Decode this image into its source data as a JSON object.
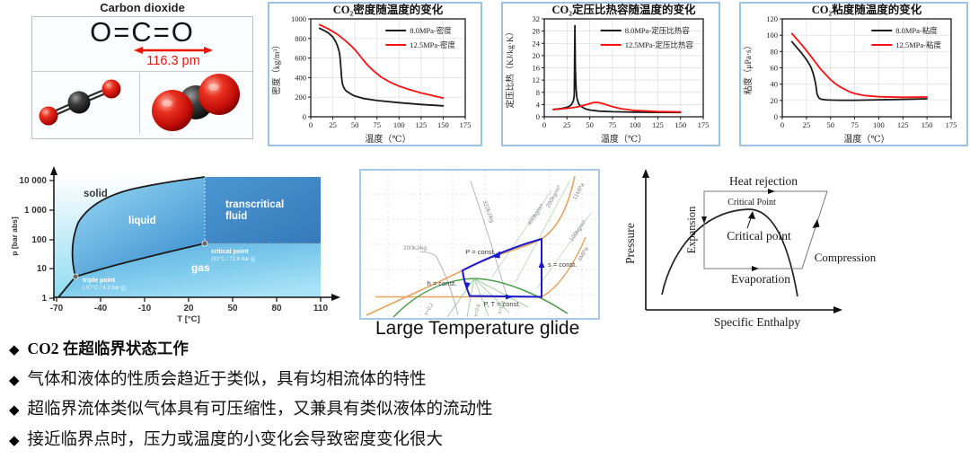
{
  "infobox": {
    "title": "Carbon dioxide",
    "formula": "O=C=O",
    "bond_length": "116.3 pm"
  },
  "chart_data": [
    {
      "type": "line",
      "title": "CO₂密度随温度的变化",
      "xlabel": "温度（℃）",
      "ylabel": "密度（kg/m³）",
      "xlim": [
        0,
        175
      ],
      "ylim": [
        0,
        1000
      ],
      "xticks": [
        0,
        25,
        50,
        75,
        100,
        125,
        150,
        175
      ],
      "yticks": [
        0,
        200,
        400,
        600,
        800,
        1000
      ],
      "grid": true,
      "legend_position": "top-right",
      "series": [
        {
          "name": "8.0MPa-密度",
          "color": "#1a1a1a",
          "x": [
            10,
            15,
            20,
            25,
            28,
            30,
            32,
            33,
            34,
            35,
            36,
            38,
            40,
            45,
            50,
            60,
            75,
            100,
            125,
            150
          ],
          "y": [
            905,
            882,
            856,
            815,
            772,
            730,
            672,
            628,
            520,
            395,
            330,
            288,
            265,
            235,
            212,
            186,
            166,
            144,
            126,
            112
          ]
        },
        {
          "name": "12.5MPa-密度",
          "color": "#fe1010",
          "x": [
            10,
            20,
            30,
            40,
            45,
            50,
            55,
            60,
            65,
            70,
            80,
            90,
            100,
            110,
            125,
            150
          ],
          "y": [
            940,
            897,
            843,
            772,
            731,
            686,
            630,
            573,
            522,
            478,
            404,
            352,
            313,
            283,
            243,
            192
          ]
        }
      ]
    },
    {
      "type": "line",
      "title": "CO₂定压比热容随温度的变化",
      "xlabel": "温度（℃）",
      "ylabel": "定压比热（KJ/kg·K）",
      "xlim": [
        0,
        175
      ],
      "ylim": [
        0,
        32
      ],
      "xticks": [
        0,
        25,
        50,
        75,
        100,
        125,
        150,
        175
      ],
      "yticks": [
        0,
        4,
        8,
        12,
        16,
        20,
        24,
        28,
        32
      ],
      "grid": true,
      "legend_position": "top-right",
      "series": [
        {
          "name": "8.0MPa-定压比热容",
          "color": "#1a1a1a",
          "x": [
            10,
            15,
            20,
            25,
            28,
            30,
            32,
            33,
            33.7,
            34.2,
            35,
            36,
            38,
            40,
            45,
            50,
            60,
            75,
            100,
            125,
            150
          ],
          "y": [
            2.4,
            2.55,
            2.75,
            3.1,
            3.5,
            4.0,
            5.2,
            7.0,
            29.8,
            16,
            9.0,
            6.0,
            4.2,
            3.5,
            2.6,
            2.2,
            1.85,
            1.65,
            1.5,
            1.45,
            1.4
          ]
        },
        {
          "name": "12.5MPa-定压比热容",
          "color": "#fe1010",
          "x": [
            10,
            20,
            30,
            40,
            45,
            50,
            54,
            57,
            60,
            65,
            70,
            75,
            85,
            100,
            125,
            150
          ],
          "y": [
            2.35,
            2.6,
            2.9,
            3.45,
            3.85,
            4.3,
            4.65,
            4.7,
            4.6,
            4.25,
            3.8,
            3.3,
            2.6,
            2.05,
            1.7,
            1.55
          ]
        }
      ]
    },
    {
      "type": "line",
      "title": "CO₂粘度随温度的变化",
      "xlabel": "温度（℃）",
      "ylabel": "粘度（μPa·s）",
      "xlim": [
        0,
        175
      ],
      "ylim": [
        0,
        120
      ],
      "xticks": [
        0,
        25,
        50,
        75,
        100,
        125,
        150,
        175
      ],
      "yticks": [
        0,
        20,
        40,
        60,
        80,
        100,
        120
      ],
      "grid": true,
      "legend_position": "top-right",
      "series": [
        {
          "name": "8.0MPa-粘度",
          "color": "#1a1a1a",
          "x": [
            10,
            15,
            20,
            25,
            28,
            30,
            32,
            34,
            35,
            36,
            38,
            40,
            45,
            50,
            60,
            75,
            100,
            125,
            150
          ],
          "y": [
            92,
            85,
            78,
            70,
            64.5,
            60,
            53,
            44,
            37,
            28,
            23,
            21.6,
            20.8,
            20.5,
            20.3,
            20.3,
            20.8,
            21.4,
            22
          ]
        },
        {
          "name": "12.5MPa-粘度",
          "color": "#fe1010",
          "x": [
            10,
            20,
            30,
            40,
            50,
            55,
            60,
            70,
            75,
            85,
            100,
            125,
            150
          ],
          "y": [
            102,
            88.5,
            73.5,
            58,
            45.5,
            40.5,
            36.5,
            30.5,
            28.5,
            26,
            24.6,
            23.9,
            24.2
          ]
        }
      ]
    }
  ],
  "phase_diagram": {
    "type": "phase-diagram-log-pressure-vs-temperature",
    "ylabel": "p [bar abs]",
    "xlabel": "T [°C]",
    "yticks": [
      "10 000",
      "1 000",
      "100",
      "10",
      "1"
    ],
    "xticks": [
      "-70",
      "-40",
      "-10",
      "20",
      "50",
      "80",
      "110"
    ],
    "region_solid": "solid",
    "region_liquid": "liquid",
    "region_trans_1": "transcritical",
    "region_trans_2": "fluid",
    "region_gas": "gas",
    "cp_label": "critical point",
    "cp_value": "(31°C / 72.8 bar g)",
    "tp_label": "triple point",
    "tp_value": "(-57°C / 4.2 bar g)"
  },
  "ts_diagram": {
    "caption": "Large Temperature glide",
    "p_const": "P = const.",
    "s_const": "s = const.",
    "pt_const": "P, T = const.",
    "h_const": "h = const.",
    "h200": "200kJ/kg",
    "h320": "320kJ/kg",
    "d400": "400kg/m³",
    "d200": "200kg/m³",
    "d100": "100kg/m³",
    "p11": "11MPa",
    "p4": "4MPa",
    "x02": "x=0.2",
    "x06": "x=0.6",
    "x08": "x=0.8"
  },
  "cycle_diagram": {
    "ylabel": "Pressure",
    "xlabel": "Specific Enthalpy",
    "heat_rejection": "Heat rejection",
    "critical_point_small": "Critical Point",
    "critical_point_big": "Critical point",
    "compression": "Compression",
    "evaporation": "Evaporation",
    "expansion": "Expansion"
  },
  "bullets": [
    {
      "marker": "◆",
      "text": "CO2 在超临界状态工作"
    },
    {
      "marker": "◆",
      "text": "气体和液体的性质会趋近于类似，具有均相流体的特性"
    },
    {
      "marker": "◆",
      "text": "超临界流体类似气体具有可压缩性，又兼具有类似液体的流动性"
    },
    {
      "marker": "◆",
      "text": "接近临界点时，压力或温度的小变化会导致密度变化很大"
    }
  ]
}
